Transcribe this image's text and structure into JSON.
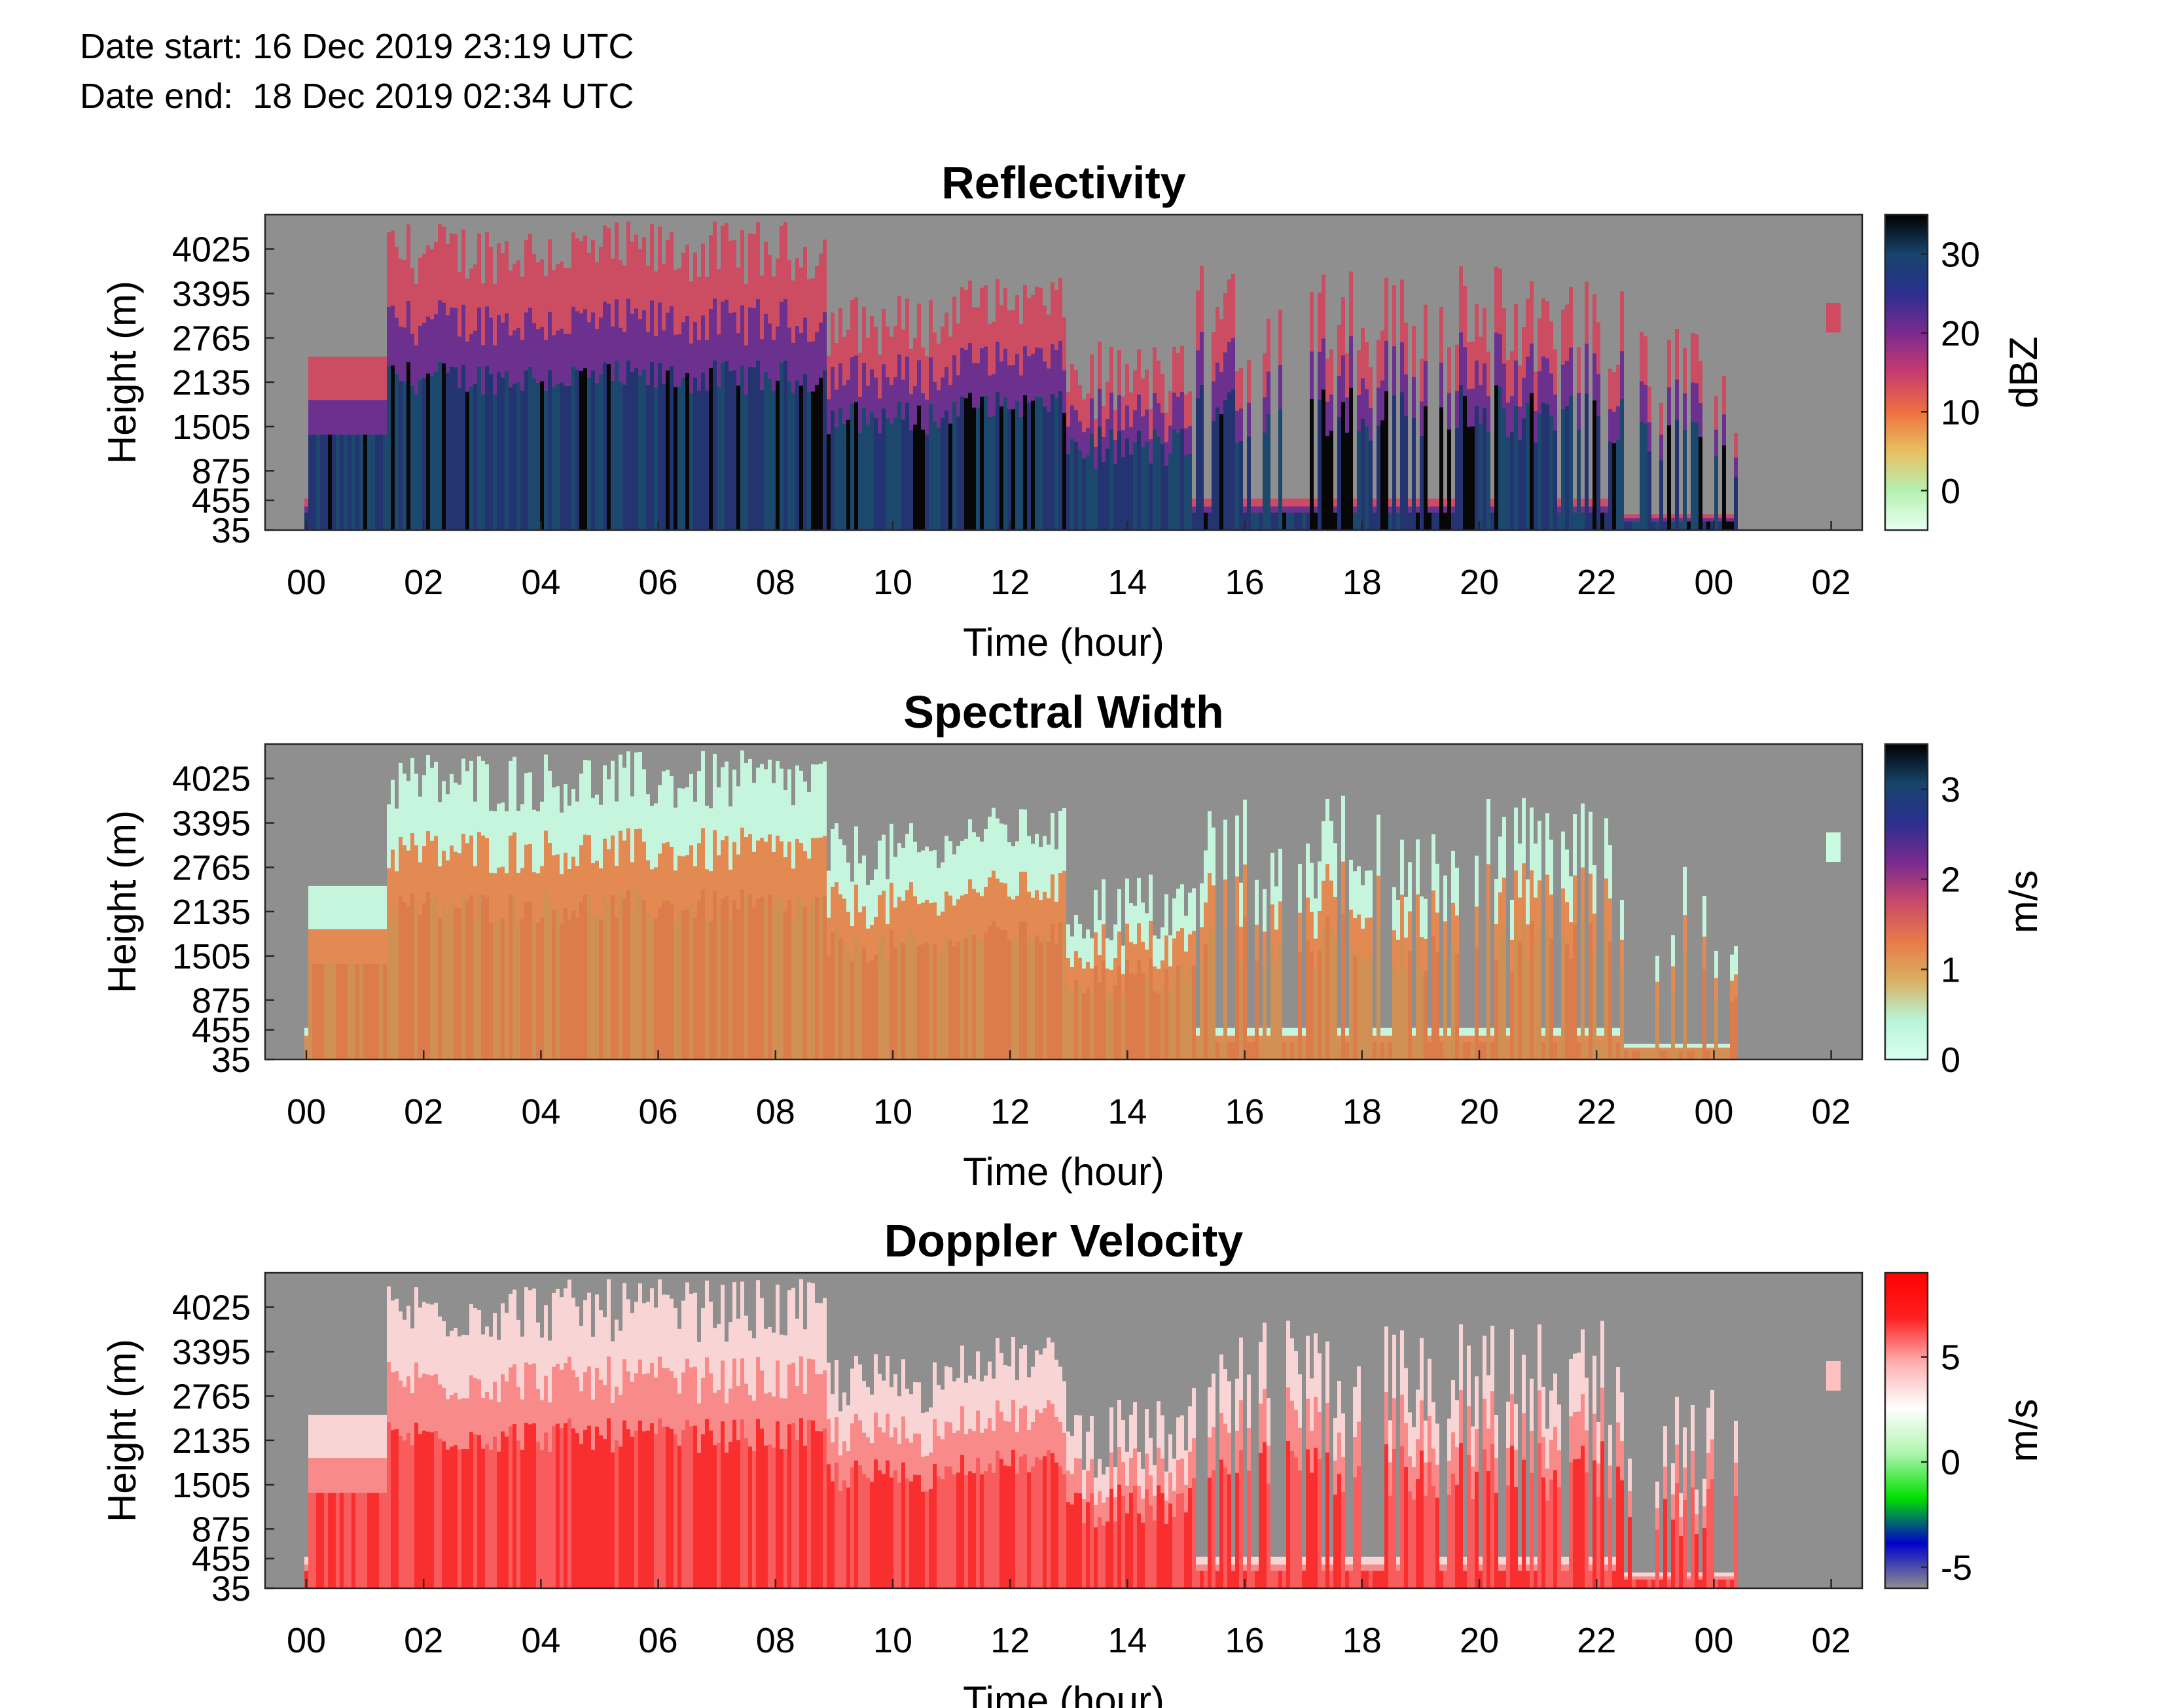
{
  "header": {
    "date_start": "Date start: 16 Dec 2019 23:19 UTC",
    "date_end": "Date end:  18 Dec 2019 02:34 UTC"
  },
  "chart_data": [
    {
      "type": "heatmap",
      "title": "Reflectivity",
      "xlabel": "Time (hour)",
      "ylabel": "Height (m)",
      "x_ticks": [
        "00",
        "02",
        "04",
        "06",
        "08",
        "10",
        "12",
        "14",
        "16",
        "18",
        "20",
        "22",
        "00",
        "02"
      ],
      "y_ticks": [
        "35",
        "455",
        "875",
        "1505",
        "2135",
        "2765",
        "3395",
        "4025"
      ],
      "ylim": [
        35,
        4500
      ],
      "colorbar": {
        "label": "dBZ",
        "ticks": [
          "0",
          "10",
          "20",
          "30"
        ],
        "range": [
          -5,
          35
        ],
        "colors": [
          "#e8fff4",
          "#b6f0b0",
          "#e8c060",
          "#ee7040",
          "#c83b6f",
          "#7a2b8f",
          "#2a2f8f",
          "#17446b",
          "#000000"
        ]
      },
      "background": "#8f8f8f"
    },
    {
      "type": "heatmap",
      "title": "Spectral Width",
      "xlabel": "Time (hour)",
      "ylabel": "Height (m)",
      "x_ticks": [
        "00",
        "02",
        "04",
        "06",
        "08",
        "10",
        "12",
        "14",
        "16",
        "18",
        "20",
        "22",
        "00",
        "02"
      ],
      "y_ticks": [
        "35",
        "455",
        "875",
        "1505",
        "2135",
        "2765",
        "3395",
        "4025"
      ],
      "ylim": [
        35,
        4500
      ],
      "colorbar": {
        "label": "m/s",
        "ticks": [
          "0",
          "1",
          "2",
          "3"
        ],
        "range": [
          0,
          3.5
        ],
        "colors": [
          "#d9fff0",
          "#b8f5d8",
          "#d9b060",
          "#e87a48",
          "#c84a6a",
          "#7a2b8f",
          "#2a2f8f",
          "#17446b",
          "#000000"
        ]
      },
      "background": "#8f8f8f"
    },
    {
      "type": "heatmap",
      "title": "Doppler Velocity",
      "xlabel": "Time (hour)",
      "ylabel": "Height (m)",
      "x_ticks": [
        "00",
        "02",
        "04",
        "06",
        "08",
        "10",
        "12",
        "14",
        "16",
        "18",
        "20",
        "22",
        "00",
        "02"
      ],
      "y_ticks": [
        "35",
        "455",
        "875",
        "1505",
        "2135",
        "2765",
        "3395",
        "4025"
      ],
      "ylim": [
        35,
        4500
      ],
      "colorbar": {
        "label": "m/s",
        "ticks": [
          "-5",
          "0",
          "5"
        ],
        "range": [
          -6,
          9
        ],
        "colors": [
          "#8f8f8f",
          "#0000cc",
          "#00e000",
          "#b0f5b0",
          "#ffffff",
          "#ffb0b0",
          "#ff2020",
          "#ff0000"
        ]
      },
      "background": "#8f8f8f"
    }
  ]
}
